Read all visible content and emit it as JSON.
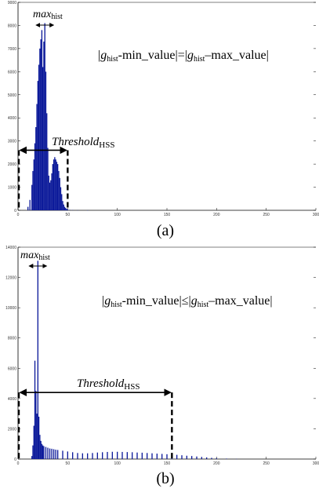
{
  "chart_data": [
    {
      "type": "bar",
      "caption": "(a)",
      "xlim": [
        0,
        300
      ],
      "ylim": [
        0,
        9000
      ],
      "xticks": [
        "0",
        "50",
        "100",
        "150",
        "200",
        "250",
        "300"
      ],
      "yticks": [
        "0",
        "1000",
        "2000",
        "3000",
        "4000",
        "5000",
        "6000",
        "7000",
        "8000",
        "9000"
      ],
      "peak": {
        "label_main": "max",
        "label_sub": "hist",
        "x": 27,
        "y": 8100
      },
      "threshold": {
        "label_main": "Threshold",
        "label_sub": "HSS",
        "from": 0,
        "to": 50,
        "y": 2600
      },
      "equation": {
        "g": "g",
        "sub1": "hist",
        "mid": "-min_value",
        "rel": "=",
        "g2": "g",
        "sub2": "hist",
        "end": "–max_value"
      },
      "x": [
        10,
        12,
        14,
        15,
        16,
        17,
        18,
        19,
        20,
        21,
        22,
        23,
        24,
        25,
        26,
        27,
        28,
        29,
        30,
        31,
        32,
        33,
        34,
        35,
        36,
        37,
        38,
        39,
        40,
        41,
        42,
        43,
        44,
        45,
        46,
        47,
        48,
        49,
        50,
        52,
        55,
        60,
        70
      ],
      "y": [
        150,
        450,
        1100,
        1700,
        2200,
        2900,
        3600,
        4600,
        5600,
        6300,
        7000,
        7400,
        7800,
        6200,
        7300,
        8100,
        6000,
        4200,
        2700,
        1500,
        1200,
        1300,
        1600,
        2000,
        2200,
        2300,
        2200,
        2100,
        2000,
        1700,
        1400,
        1000,
        700,
        400,
        250,
        150,
        100,
        60,
        40,
        20,
        10,
        5,
        2
      ]
    },
    {
      "type": "bar",
      "caption": "(b)",
      "xlim": [
        0,
        300
      ],
      "ylim": [
        0,
        14000
      ],
      "xticks": [
        "0",
        "50",
        "100",
        "150",
        "200",
        "250",
        "300"
      ],
      "yticks": [
        "0",
        "2000",
        "4000",
        "6000",
        "8000",
        "10000",
        "12000",
        "14000"
      ],
      "peak": {
        "label_main": "max",
        "label_sub": "hist",
        "x": 20,
        "y": 13100
      },
      "threshold": {
        "label_main": "Threshold",
        "label_sub": "HSS",
        "from": 0,
        "to": 155,
        "y": 4400
      },
      "equation": {
        "g": "g",
        "sub1": "hist",
        "mid": "-min_value",
        "rel": "≤",
        "g2": "g",
        "sub2": "hist",
        "end": "–max_value"
      },
      "x": [
        14,
        15,
        16,
        17,
        18,
        19,
        20,
        21,
        22,
        23,
        24,
        25,
        26,
        28,
        30,
        32,
        34,
        36,
        38,
        40,
        45,
        50,
        55,
        60,
        65,
        70,
        75,
        80,
        85,
        90,
        95,
        100,
        105,
        110,
        115,
        120,
        125,
        130,
        135,
        140,
        145,
        150,
        155,
        160,
        165,
        170,
        175,
        180,
        185,
        190,
        195,
        200,
        210,
        220
      ],
      "y": [
        200,
        900,
        2200,
        6500,
        4500,
        3000,
        13100,
        2800,
        1600,
        1200,
        1000,
        900,
        850,
        800,
        750,
        700,
        680,
        650,
        620,
        600,
        550,
        500,
        450,
        400,
        380,
        380,
        400,
        430,
        450,
        470,
        480,
        480,
        470,
        460,
        450,
        430,
        420,
        400,
        380,
        360,
        340,
        320,
        300,
        280,
        250,
        220,
        200,
        170,
        140,
        110,
        80,
        60,
        30,
        10
      ]
    }
  ]
}
